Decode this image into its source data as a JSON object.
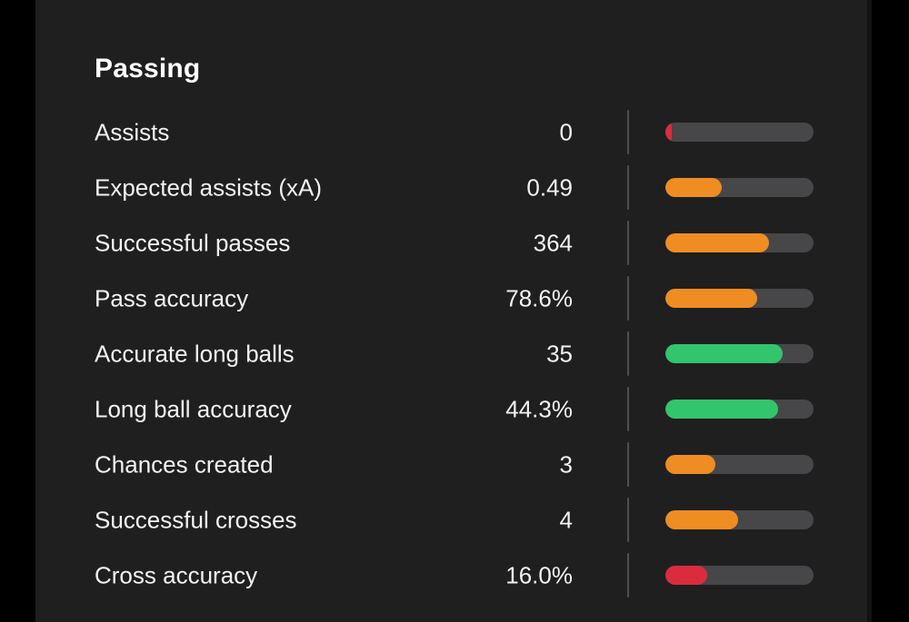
{
  "title": "Passing",
  "colors": {
    "page_background": "#000000",
    "panel_background": "#1f1f1f",
    "text": "#f2f2f3",
    "title_text": "#ffffff",
    "bar_track": "#47474a",
    "row_divider": "#4f4f52",
    "good": "#32c56b",
    "average": "#ef8d22",
    "poor": "#db2c3e"
  },
  "stats": [
    {
      "label": "Assists",
      "value": "0",
      "bar": {
        "percent": 4,
        "level": "poor"
      }
    },
    {
      "label": "Expected assists (xA)",
      "value": "0.49",
      "bar": {
        "percent": 38,
        "level": "average"
      }
    },
    {
      "label": "Successful passes",
      "value": "364",
      "bar": {
        "percent": 70,
        "level": "average"
      }
    },
    {
      "label": "Pass accuracy",
      "value": "78.6%",
      "bar": {
        "percent": 62,
        "level": "average"
      }
    },
    {
      "label": "Accurate long balls",
      "value": "35",
      "bar": {
        "percent": 79,
        "level": "good"
      }
    },
    {
      "label": "Long ball accuracy",
      "value": "44.3%",
      "bar": {
        "percent": 76,
        "level": "good"
      }
    },
    {
      "label": "Chances created",
      "value": "3",
      "bar": {
        "percent": 34,
        "level": "average"
      }
    },
    {
      "label": "Successful crosses",
      "value": "4",
      "bar": {
        "percent": 49,
        "level": "average"
      }
    },
    {
      "label": "Cross accuracy",
      "value": "16.0%",
      "bar": {
        "percent": 28,
        "level": "poor"
      }
    }
  ]
}
